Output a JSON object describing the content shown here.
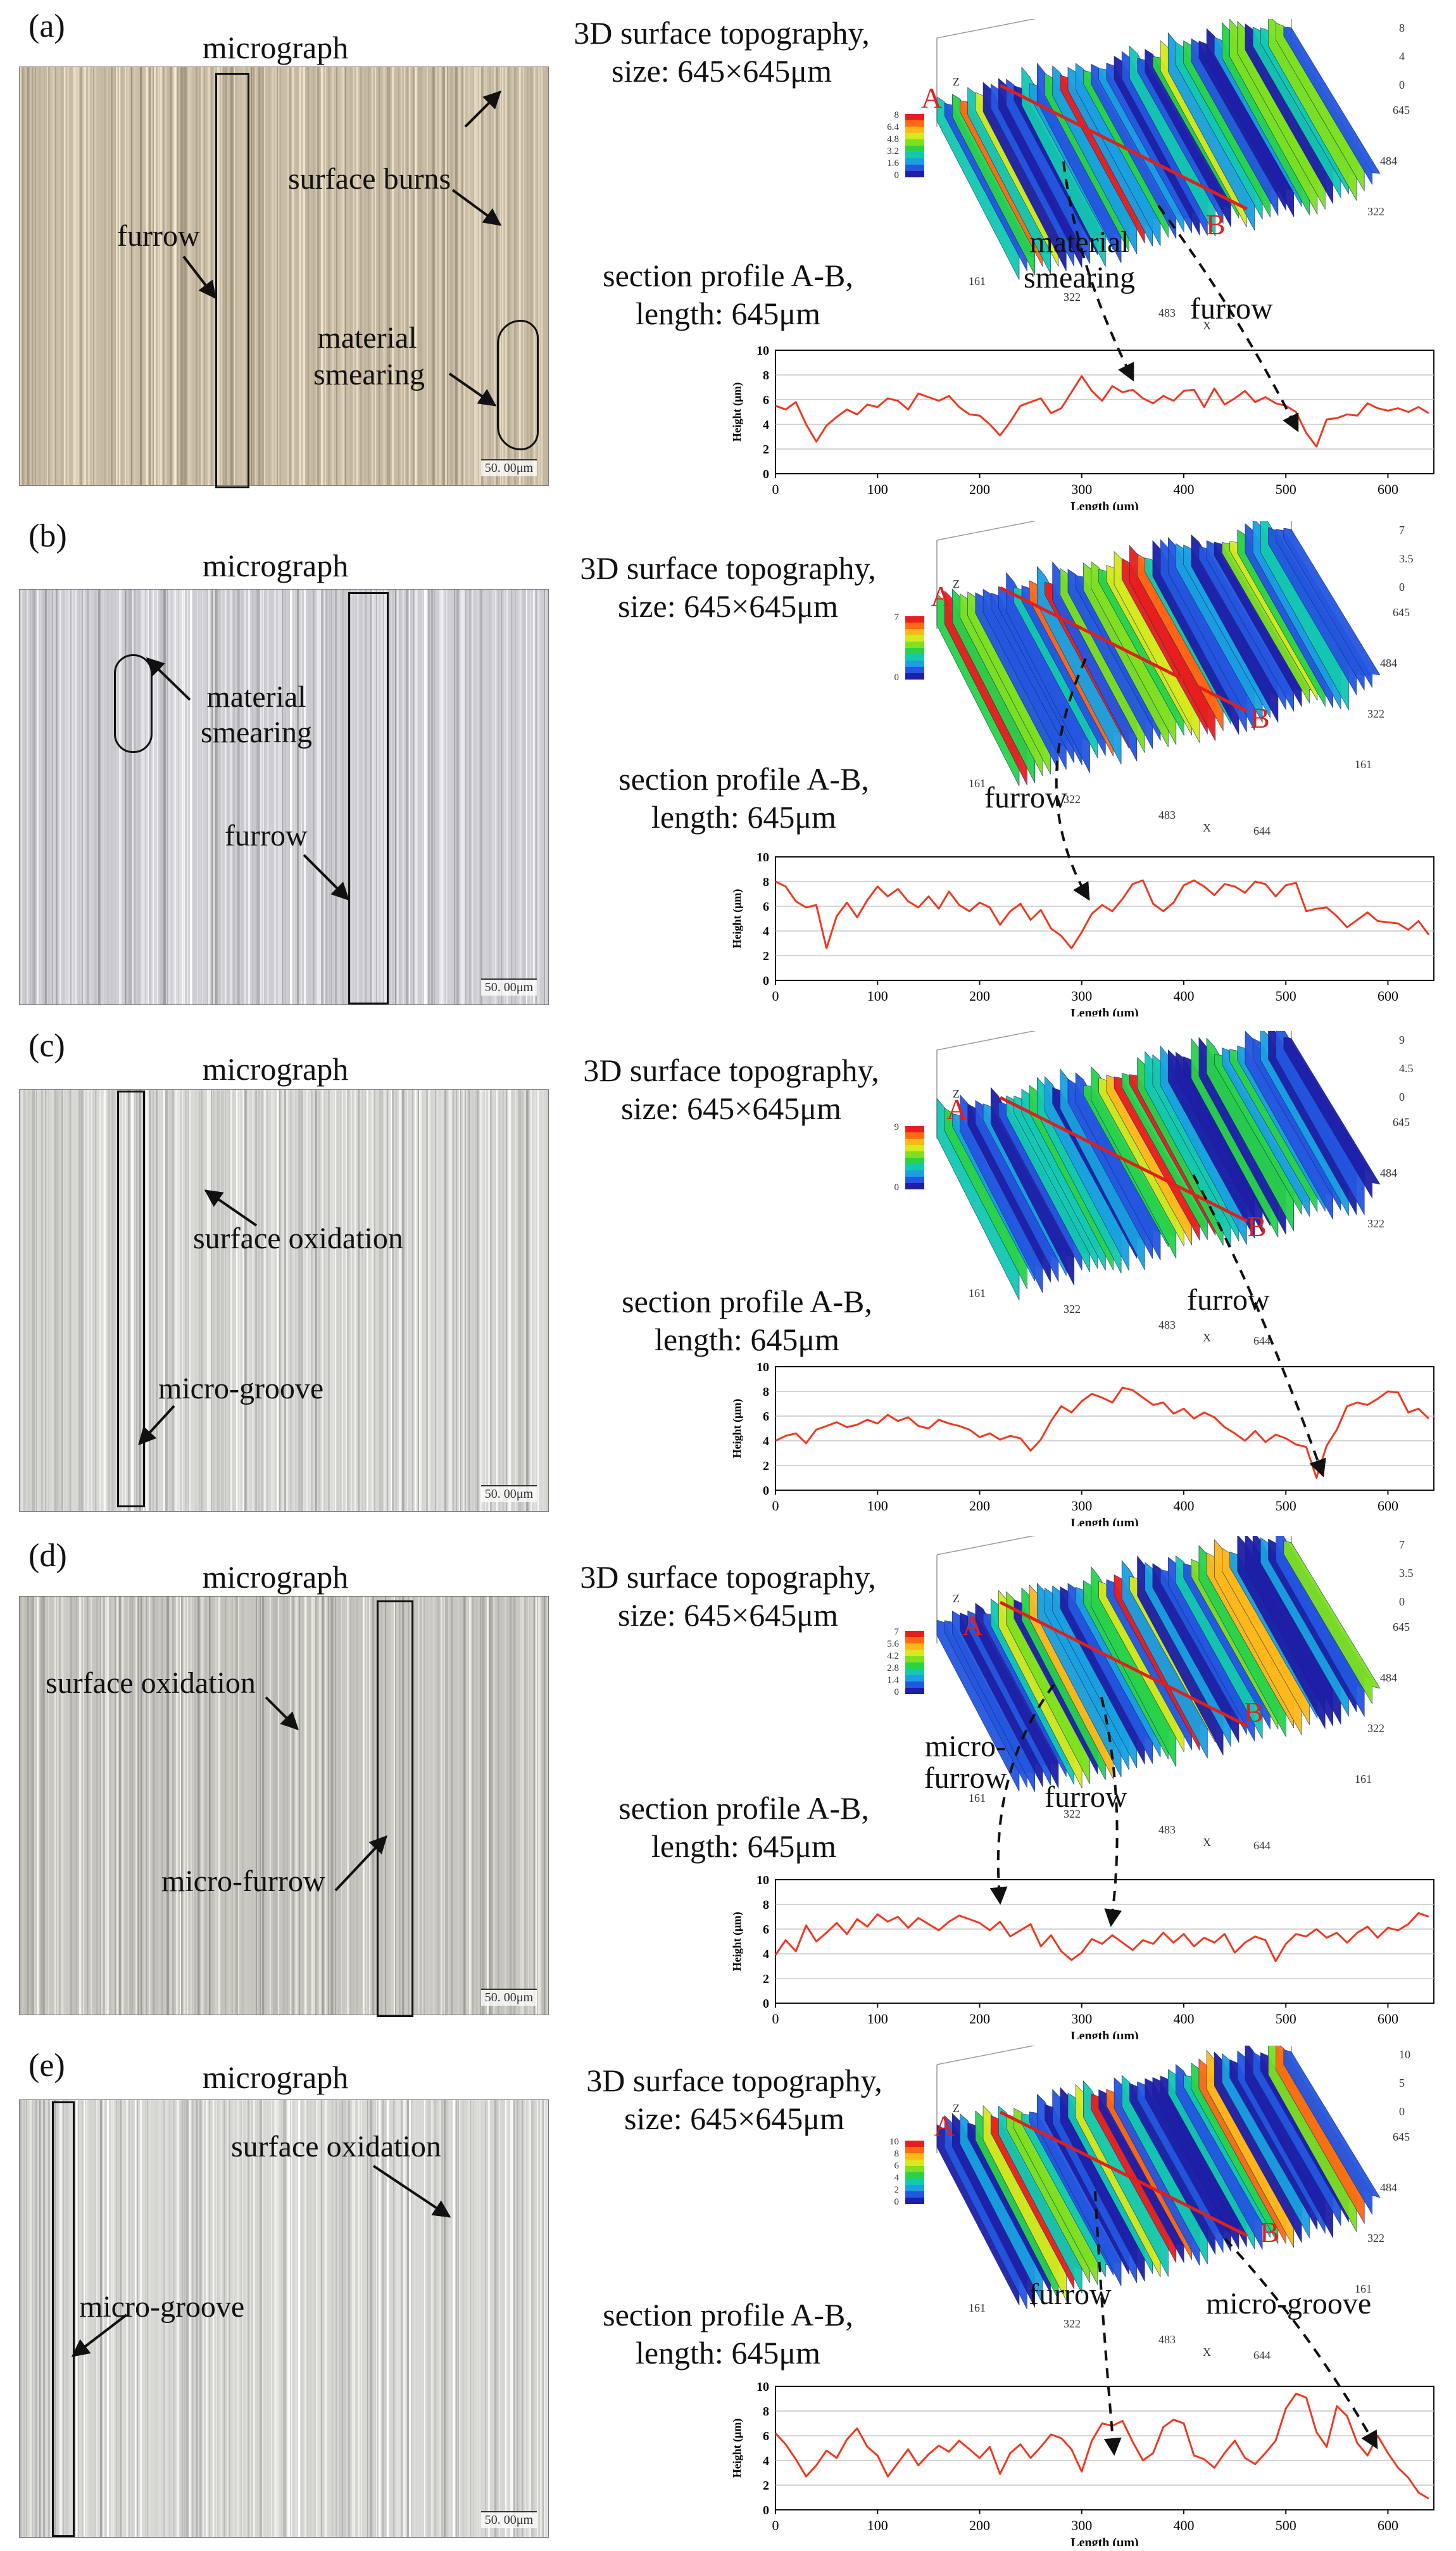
{
  "panels": [
    {
      "letter": "(a)",
      "micrograph_title": "micrograph",
      "scale_bar": "50. 00μm",
      "annotations": [
        "furrow",
        "surface burns",
        "material smearing"
      ],
      "topo_title_line1": "3D surface topography,",
      "topo_title_line2": "size: 645×645μm",
      "topo_annotations": [
        "material smearing",
        "furrow"
      ],
      "topo_colorbar_ticks": [
        "8",
        "6.4",
        "4.8",
        "3.2",
        "1.6",
        "0"
      ],
      "topo_z_ticks": [
        "8",
        "4",
        "0"
      ],
      "topo_y_ticks": [
        "645",
        "484",
        "322"
      ],
      "topo_x_ticks": [
        "161",
        "322",
        "483"
      ],
      "section_title_line1": "section profile A-B,",
      "section_title_line2": "length: 645μm",
      "point_a": "A",
      "point_b": "B"
    },
    {
      "letter": "(b)",
      "micrograph_title": "micrograph",
      "scale_bar": "50. 00μm",
      "annotations": [
        "material smearing",
        "furrow"
      ],
      "topo_title_line1": "3D surface topography,",
      "topo_title_line2": "size: 645×645μm",
      "topo_annotations": [
        "furrow"
      ],
      "topo_colorbar_ticks": [
        "7",
        "",
        "",
        "",
        "",
        "0"
      ],
      "topo_z_ticks": [
        "7",
        "3.5",
        "0"
      ],
      "topo_y_ticks": [
        "645",
        "484",
        "322",
        "161"
      ],
      "topo_x_ticks": [
        "161",
        "322",
        "483",
        "644"
      ],
      "section_title_line1": "section profile A-B,",
      "section_title_line2": "length: 645μm",
      "point_a": "A",
      "point_b": "B"
    },
    {
      "letter": "(c)",
      "micrograph_title": "micrograph",
      "scale_bar": "50. 00μm",
      "annotations": [
        "surface oxidation",
        "micro-groove"
      ],
      "topo_title_line1": "3D surface topography,",
      "topo_title_line2": "size: 645×645μm",
      "topo_annotations": [
        "furrow"
      ],
      "topo_colorbar_ticks": [
        "9",
        "",
        "",
        "",
        "",
        "0"
      ],
      "topo_z_ticks": [
        "9",
        "4.5",
        "0"
      ],
      "topo_y_ticks": [
        "645",
        "484",
        "322"
      ],
      "topo_x_ticks": [
        "161",
        "322",
        "483",
        "644"
      ],
      "section_title_line1": "section profile A-B,",
      "section_title_line2": "length: 645μm",
      "point_a": "A",
      "point_b": "B"
    },
    {
      "letter": "(d)",
      "micrograph_title": "micrograph",
      "scale_bar": "50. 00μm",
      "annotations": [
        "surface oxidation",
        "micro-furrow"
      ],
      "topo_title_line1": "3D surface topography,",
      "topo_title_line2": "size: 645×645μm",
      "topo_annotations": [
        "micro- furrow",
        "furrow"
      ],
      "topo_colorbar_ticks": [
        "7",
        "5.6",
        "4.2",
        "2.8",
        "1.4",
        "0"
      ],
      "topo_z_ticks": [
        "7",
        "3.5",
        "0"
      ],
      "topo_y_ticks": [
        "645",
        "484",
        "322",
        "161"
      ],
      "topo_x_ticks": [
        "161",
        "322",
        "483",
        "644"
      ],
      "section_title_line1": "section profile A-B,",
      "section_title_line2": "length: 645μm",
      "point_a": "A",
      "point_b": "B"
    },
    {
      "letter": "(e)",
      "micrograph_title": "micrograph",
      "scale_bar": "50. 00μm",
      "annotations": [
        "surface oxidation",
        "micro-groove"
      ],
      "topo_title_line1": "3D surface topography,",
      "topo_title_line2": "size: 645×645μm",
      "topo_annotations": [
        "furrow",
        "micro-groove"
      ],
      "topo_colorbar_ticks": [
        "10",
        "8",
        "6",
        "4",
        "2",
        "0"
      ],
      "topo_z_ticks": [
        "10",
        "5",
        "0"
      ],
      "topo_y_ticks": [
        "645",
        "484",
        "322",
        "161"
      ],
      "topo_x_ticks": [
        "161",
        "322",
        "483",
        "644"
      ],
      "section_title_line1": "section profile A-B,",
      "section_title_line2": "length: 645μm",
      "point_a": "A",
      "point_b": "B"
    }
  ],
  "chart_data": [
    {
      "type": "line",
      "panel": "(a)",
      "xlabel": "Length (μm)",
      "ylabel": "Height (μm)",
      "xlim": [
        0,
        645
      ],
      "ylim": [
        0,
        10
      ],
      "x_ticks": [
        "0",
        "100",
        "200",
        "300",
        "400",
        "500",
        "600"
      ],
      "y_ticks": [
        "0",
        "2",
        "4",
        "6",
        "8",
        "10"
      ],
      "grid": "horizontal",
      "series": [
        {
          "x": [
            0,
            10,
            20,
            30,
            40,
            50,
            60,
            70,
            80,
            90,
            100,
            110,
            120,
            130,
            140,
            150,
            160,
            170,
            180,
            190,
            200,
            210,
            220,
            230,
            240,
            250,
            260,
            270,
            280,
            290,
            300,
            310,
            320,
            330,
            340,
            350,
            360,
            370,
            380,
            390,
            400,
            410,
            420,
            430,
            440,
            450,
            460,
            470,
            480,
            490,
            500,
            510,
            520,
            530,
            540,
            550,
            560,
            570,
            580,
            590,
            600,
            610,
            620,
            630,
            640
          ],
          "y": [
            5.5,
            5.2,
            5.8,
            4.0,
            2.6,
            3.9,
            4.6,
            5.2,
            4.8,
            5.6,
            5.4,
            6.1,
            5.9,
            5.2,
            6.5,
            6.2,
            5.9,
            6.3,
            5.4,
            4.8,
            4.7,
            4.0,
            3.1,
            4.2,
            5.5,
            5.8,
            6.1,
            4.9,
            5.3,
            6.6,
            7.9,
            6.7,
            5.9,
            7.1,
            6.6,
            6.8,
            6.1,
            5.7,
            6.3,
            5.9,
            6.7,
            6.8,
            5.4,
            6.9,
            5.6,
            6.1,
            6.7,
            5.8,
            6.2,
            5.7,
            5.5,
            5.0,
            3.3,
            2.2,
            4.4,
            4.5,
            4.8,
            4.7,
            5.7,
            5.3,
            5.1,
            5.3,
            5.0,
            5.4,
            4.9
          ]
        }
      ]
    },
    {
      "type": "line",
      "panel": "(b)",
      "xlabel": "Length (μm)",
      "ylabel": "Height (μm)",
      "xlim": [
        0,
        645
      ],
      "ylim": [
        0,
        10
      ],
      "x_ticks": [
        "0",
        "100",
        "200",
        "300",
        "400",
        "500",
        "600"
      ],
      "y_ticks": [
        "0",
        "2",
        "4",
        "6",
        "8",
        "10"
      ],
      "grid": "horizontal",
      "series": [
        {
          "x": [
            0,
            10,
            20,
            30,
            40,
            50,
            60,
            70,
            80,
            90,
            100,
            110,
            120,
            130,
            140,
            150,
            160,
            170,
            180,
            190,
            200,
            210,
            220,
            230,
            240,
            250,
            260,
            270,
            280,
            290,
            300,
            310,
            320,
            330,
            340,
            350,
            360,
            370,
            380,
            390,
            400,
            410,
            420,
            430,
            440,
            450,
            460,
            470,
            480,
            490,
            500,
            510,
            520,
            530,
            540,
            550,
            560,
            570,
            580,
            590,
            600,
            610,
            620,
            630,
            640
          ],
          "y": [
            8.0,
            7.6,
            6.4,
            5.9,
            6.1,
            2.6,
            5.2,
            6.3,
            5.1,
            6.5,
            7.6,
            6.8,
            7.4,
            6.4,
            5.9,
            6.8,
            5.8,
            7.2,
            6.1,
            5.6,
            6.3,
            5.9,
            4.5,
            5.6,
            6.2,
            4.9,
            5.7,
            4.2,
            3.6,
            2.6,
            3.9,
            5.4,
            6.1,
            5.6,
            6.6,
            7.8,
            8.1,
            6.2,
            5.6,
            6.3,
            7.7,
            8.1,
            7.6,
            6.9,
            7.8,
            7.6,
            7.1,
            8.0,
            7.8,
            6.8,
            7.7,
            7.9,
            5.6,
            5.8,
            5.9,
            5.2,
            4.3,
            4.9,
            5.5,
            4.8,
            4.7,
            4.6,
            4.1,
            4.8,
            3.7
          ]
        }
      ]
    },
    {
      "type": "line",
      "panel": "(c)",
      "xlabel": "Length (μm)",
      "ylabel": "Height (μm)",
      "xlim": [
        0,
        645
      ],
      "ylim": [
        0,
        10
      ],
      "x_ticks": [
        "0",
        "100",
        "200",
        "300",
        "400",
        "500",
        "600"
      ],
      "y_ticks": [
        "0",
        "2",
        "4",
        "6",
        "8",
        "10"
      ],
      "grid": "horizontal",
      "series": [
        {
          "x": [
            0,
            10,
            20,
            30,
            40,
            50,
            60,
            70,
            80,
            90,
            100,
            110,
            120,
            130,
            140,
            150,
            160,
            170,
            180,
            190,
            200,
            210,
            220,
            230,
            240,
            250,
            260,
            270,
            280,
            290,
            300,
            310,
            320,
            330,
            340,
            350,
            360,
            370,
            380,
            390,
            400,
            410,
            420,
            430,
            440,
            450,
            460,
            470,
            480,
            490,
            500,
            510,
            520,
            530,
            540,
            550,
            560,
            570,
            580,
            590,
            600,
            610,
            620,
            630,
            640
          ],
          "y": [
            4.0,
            4.4,
            4.6,
            3.8,
            4.9,
            5.2,
            5.5,
            5.1,
            5.3,
            5.7,
            5.4,
            6.1,
            5.6,
            5.9,
            5.2,
            5.0,
            5.7,
            5.4,
            5.2,
            4.9,
            4.3,
            4.6,
            4.1,
            4.4,
            4.2,
            3.2,
            4.1,
            5.6,
            6.8,
            6.3,
            7.2,
            7.8,
            7.5,
            7.1,
            8.3,
            8.1,
            7.5,
            6.9,
            7.1,
            6.2,
            6.6,
            5.8,
            6.3,
            5.9,
            5.1,
            4.6,
            4.0,
            4.8,
            3.9,
            4.5,
            4.2,
            3.7,
            3.5,
            1.0,
            3.6,
            4.9,
            6.8,
            7.1,
            6.9,
            7.4,
            8.0,
            7.9,
            6.3,
            6.6,
            5.8
          ]
        }
      ]
    },
    {
      "type": "line",
      "panel": "(d)",
      "xlabel": "Length (μm)",
      "ylabel": "Height (μm)",
      "xlim": [
        0,
        645
      ],
      "ylim": [
        0,
        10
      ],
      "x_ticks": [
        "0",
        "100",
        "200",
        "300",
        "400",
        "500",
        "600"
      ],
      "y_ticks": [
        "0",
        "2",
        "4",
        "6",
        "8",
        "10"
      ],
      "grid": "horizontal",
      "series": [
        {
          "x": [
            0,
            10,
            20,
            30,
            40,
            50,
            60,
            70,
            80,
            90,
            100,
            110,
            120,
            130,
            140,
            150,
            160,
            170,
            180,
            190,
            200,
            210,
            220,
            230,
            240,
            250,
            260,
            270,
            280,
            290,
            300,
            310,
            320,
            330,
            340,
            350,
            360,
            370,
            380,
            390,
            400,
            410,
            420,
            430,
            440,
            450,
            460,
            470,
            480,
            490,
            500,
            510,
            520,
            530,
            540,
            550,
            560,
            570,
            580,
            590,
            600,
            610,
            620,
            630,
            640
          ],
          "y": [
            3.9,
            5.1,
            4.2,
            6.3,
            5.0,
            5.7,
            6.5,
            5.6,
            6.8,
            6.2,
            7.2,
            6.6,
            7.0,
            6.1,
            6.9,
            6.4,
            5.9,
            6.6,
            7.1,
            6.8,
            6.5,
            5.9,
            6.6,
            5.4,
            5.9,
            6.4,
            4.6,
            5.5,
            4.2,
            3.5,
            4.1,
            5.2,
            4.8,
            5.5,
            4.9,
            4.3,
            5.1,
            4.8,
            5.7,
            4.9,
            5.6,
            4.6,
            5.3,
            4.9,
            5.6,
            4.1,
            4.9,
            5.4,
            5.1,
            3.4,
            4.8,
            5.6,
            5.4,
            6.0,
            5.3,
            5.7,
            4.9,
            5.7,
            6.2,
            5.3,
            6.1,
            5.9,
            6.4,
            7.3,
            7.0
          ]
        }
      ]
    },
    {
      "type": "line",
      "panel": "(e)",
      "xlabel": "Length (μm)",
      "ylabel": "Height (μm)",
      "xlim": [
        0,
        645
      ],
      "ylim": [
        0,
        10
      ],
      "x_ticks": [
        "0",
        "100",
        "200",
        "300",
        "400",
        "500",
        "600"
      ],
      "y_ticks": [
        "0",
        "2",
        "4",
        "6",
        "8",
        "10"
      ],
      "grid": "horizontal",
      "series": [
        {
          "x": [
            0,
            10,
            20,
            30,
            40,
            50,
            60,
            70,
            80,
            90,
            100,
            110,
            120,
            130,
            140,
            150,
            160,
            170,
            180,
            190,
            200,
            210,
            220,
            230,
            240,
            250,
            260,
            270,
            280,
            290,
            300,
            310,
            320,
            330,
            340,
            350,
            360,
            370,
            380,
            390,
            400,
            410,
            420,
            430,
            440,
            450,
            460,
            470,
            480,
            490,
            500,
            510,
            520,
            530,
            540,
            550,
            560,
            570,
            580,
            590,
            600,
            610,
            620,
            630,
            640
          ],
          "y": [
            6.2,
            5.3,
            4.1,
            2.7,
            3.6,
            4.8,
            4.2,
            5.7,
            6.6,
            5.1,
            4.4,
            2.7,
            3.8,
            4.9,
            3.6,
            4.5,
            5.2,
            4.7,
            5.6,
            4.9,
            4.2,
            5.1,
            2.9,
            4.6,
            5.3,
            4.2,
            5.1,
            6.1,
            5.8,
            4.9,
            3.1,
            5.6,
            7.0,
            6.8,
            7.2,
            5.5,
            4.0,
            4.6,
            6.7,
            7.3,
            7.0,
            4.4,
            4.1,
            3.4,
            4.6,
            5.6,
            4.2,
            3.7,
            4.6,
            5.6,
            8.2,
            9.4,
            9.1,
            6.3,
            5.1,
            8.4,
            7.6,
            5.4,
            4.4,
            6.0,
            4.6,
            3.4,
            2.6,
            1.4,
            0.9
          ]
        }
      ]
    }
  ]
}
